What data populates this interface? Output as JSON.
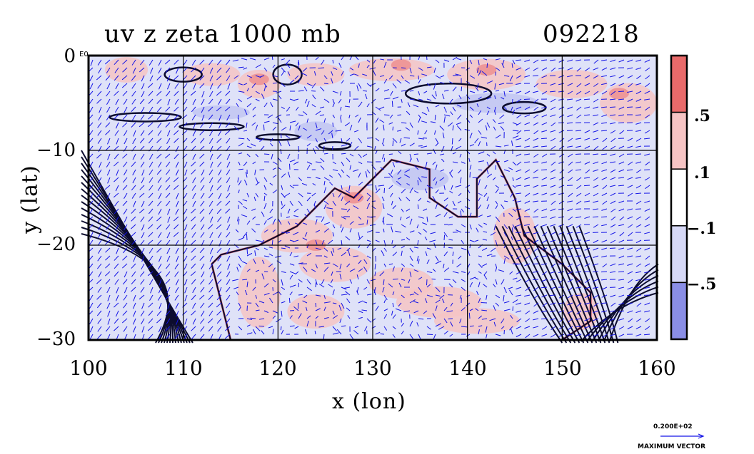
{
  "title": {
    "left": "uv z zeta 1000 mb",
    "right": "092218"
  },
  "axes": {
    "xlabel": "x (lon)",
    "ylabel": "y (lat)",
    "xticks": [
      "100",
      "110",
      "120",
      "130",
      "140",
      "150",
      "160"
    ],
    "yticks": [
      "0",
      "−10",
      "−20",
      "−30"
    ],
    "corner_label": "E0"
  },
  "colorbar": {
    "labels": [
      ".5",
      ".1",
      "−.1",
      "−.5"
    ],
    "colors": [
      "#e86a6a",
      "#f6c4c4",
      "#ffffff",
      "#d6d8f6",
      "#8a8ee6"
    ]
  },
  "reference_vector": {
    "value": "0.200E+02",
    "label": "MAXIMUM VECTOR"
  },
  "map": {
    "lon_range": [
      100,
      160
    ],
    "lat_range": [
      -30,
      0
    ],
    "gridlines": true,
    "contour_color": "#0c0c2e",
    "vector_color": "#1414e6",
    "pos_vorticity_color": "#e82020",
    "neg_vorticity_color": "#3030d0"
  }
}
